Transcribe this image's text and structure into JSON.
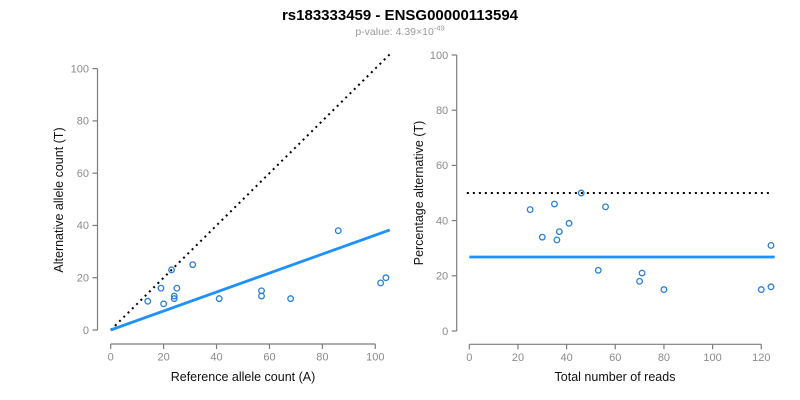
{
  "figure": {
    "title": "rs183333459 - ENSG00000113594",
    "subtitle_base": "p-value: 4.39×10",
    "subtitle_exponent": "-49"
  },
  "colors": {
    "regression_line": "#1e90ff",
    "point_stroke": "#2b7fd6",
    "reference_line": "#000000",
    "axis": "#7d7d7d",
    "tick_label": "#8a8a8a",
    "axis_title": "#111111",
    "subtitle": "#9b9b9b"
  },
  "chart_data": [
    {
      "type": "scatter",
      "name": "allele-counts-scatter",
      "xlabel": "Reference allele count (A)",
      "ylabel": "Alternative allele count (T)",
      "xlim": [
        0,
        105
      ],
      "ylim": [
        0,
        100
      ],
      "xticks": [
        0,
        20,
        40,
        60,
        80,
        100
      ],
      "yticks": [
        0,
        20,
        40,
        60,
        80,
        100
      ],
      "grid": false,
      "legend": "none",
      "marker": "open-circle",
      "points": [
        [
          14,
          11
        ],
        [
          19,
          16
        ],
        [
          20,
          10
        ],
        [
          23,
          23
        ],
        [
          24,
          12
        ],
        [
          24,
          13
        ],
        [
          25,
          16
        ],
        [
          31,
          25
        ],
        [
          41,
          12
        ],
        [
          57,
          13
        ],
        [
          57,
          15
        ],
        [
          68,
          12
        ],
        [
          86,
          38
        ],
        [
          102,
          18
        ],
        [
          104,
          20
        ]
      ],
      "lines": [
        {
          "name": "identity-line",
          "style": "dotted",
          "color": "#000000",
          "from": [
            0,
            0
          ],
          "to": [
            105.5,
            105.5
          ]
        },
        {
          "name": "fit-line",
          "style": "solid",
          "color": "#1e90ff",
          "from": [
            0,
            0
          ],
          "to": [
            105.5,
            38.3
          ]
        }
      ]
    },
    {
      "type": "scatter",
      "name": "percentage-vs-reads-scatter",
      "xlabel": "Total number of reads",
      "ylabel": "Percentage alternative (T)",
      "xlim": [
        0,
        124
      ],
      "ylim": [
        0,
        100
      ],
      "xticks": [
        0,
        20,
        40,
        60,
        80,
        100,
        120
      ],
      "yticks": [
        0,
        20,
        40,
        60,
        80,
        100
      ],
      "grid": false,
      "legend": "none",
      "marker": "open-circle",
      "points": [
        [
          25,
          44
        ],
        [
          30,
          34
        ],
        [
          35,
          46
        ],
        [
          36,
          33
        ],
        [
          37,
          36
        ],
        [
          41,
          39
        ],
        [
          46,
          50
        ],
        [
          53,
          22
        ],
        [
          56,
          45
        ],
        [
          70,
          18
        ],
        [
          71,
          21
        ],
        [
          80,
          15
        ],
        [
          120,
          15
        ],
        [
          124,
          16
        ],
        [
          124,
          31
        ]
      ],
      "lines": [
        {
          "name": "fifty-percent-line",
          "style": "dotted",
          "color": "#000000",
          "from": [
            -1,
            50
          ],
          "to": [
            124.5,
            50
          ]
        },
        {
          "name": "mean-percentage-line",
          "style": "solid",
          "color": "#1e90ff",
          "from": [
            0,
            26.8
          ],
          "to": [
            125.5,
            26.8
          ]
        }
      ]
    }
  ]
}
